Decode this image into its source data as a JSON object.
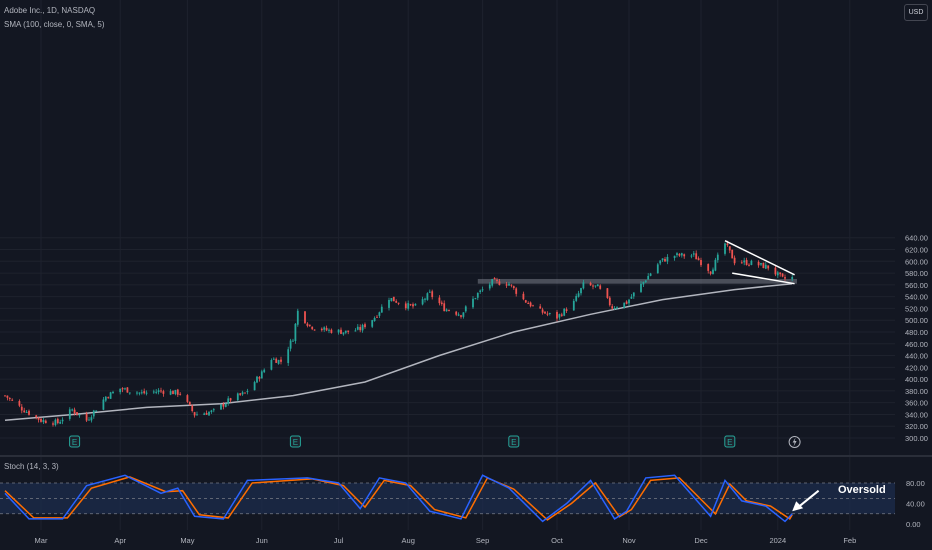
{
  "legend": {
    "title": "Adobe Inc., 1D, NASDAQ",
    "indicator": "SMA (100, close, 0, SMA, 5)",
    "stoch": "Stoch (14, 3, 3)"
  },
  "currency_button": "USD",
  "annotation": {
    "text": "Oversold",
    "color": "#ffffff"
  },
  "colors": {
    "background": "#131722",
    "up": "#26a69a",
    "down": "#ef5350",
    "sma": "#b2b5be",
    "stoch_k": "#2962ff",
    "stoch_d": "#ff6d00",
    "band": "#1c2c4c",
    "zone": "#787b86",
    "drawing": "#ffffff"
  },
  "chart_data": {
    "type": "candlestick",
    "symbol": "Adobe Inc.",
    "interval": "1D",
    "exchange": "NASDAQ",
    "currency": "USD",
    "price_axis": {
      "ticks": [
        300,
        320,
        340,
        360,
        380,
        400,
        420,
        440,
        460,
        480,
        500,
        520,
        540,
        560,
        580,
        600,
        620,
        640
      ],
      "range": [
        292,
        648
      ]
    },
    "x_axis": {
      "labels": [
        {
          "label": "Mar",
          "date": "2023-03-01"
        },
        {
          "label": "Apr",
          "date": "2023-04-03"
        },
        {
          "label": "May",
          "date": "2023-05-01"
        },
        {
          "label": "Jun",
          "date": "2023-06-01"
        },
        {
          "label": "Jul",
          "date": "2023-07-03"
        },
        {
          "label": "Aug",
          "date": "2023-08-01"
        },
        {
          "label": "Sep",
          "date": "2023-09-01"
        },
        {
          "label": "Oct",
          "date": "2023-10-02"
        },
        {
          "label": "Nov",
          "date": "2023-11-01"
        },
        {
          "label": "Dec",
          "date": "2023-12-01"
        },
        {
          "label": "2024",
          "date": "2024-01-02"
        },
        {
          "label": "Feb",
          "date": "2024-02-01"
        }
      ]
    },
    "price_path": [
      {
        "date": "2023-02-14",
        "close": 372
      },
      {
        "date": "2023-02-21",
        "close": 350
      },
      {
        "date": "2023-03-01",
        "close": 330
      },
      {
        "date": "2023-03-08",
        "close": 326
      },
      {
        "date": "2023-03-14",
        "close": 348
      },
      {
        "date": "2023-03-20",
        "close": 330
      },
      {
        "date": "2023-03-28",
        "close": 370
      },
      {
        "date": "2023-04-03",
        "close": 384
      },
      {
        "date": "2023-04-12",
        "close": 376
      },
      {
        "date": "2023-04-20",
        "close": 380
      },
      {
        "date": "2023-04-28",
        "close": 376
      },
      {
        "date": "2023-05-04",
        "close": 340
      },
      {
        "date": "2023-05-12",
        "close": 345
      },
      {
        "date": "2023-05-19",
        "close": 366
      },
      {
        "date": "2023-05-25",
        "close": 376
      },
      {
        "date": "2023-06-01",
        "close": 410
      },
      {
        "date": "2023-06-05",
        "close": 435
      },
      {
        "date": "2023-06-09",
        "close": 430
      },
      {
        "date": "2023-06-14",
        "close": 470
      },
      {
        "date": "2023-06-16",
        "close": 515
      },
      {
        "date": "2023-06-21",
        "close": 490
      },
      {
        "date": "2023-06-28",
        "close": 483
      },
      {
        "date": "2023-07-06",
        "close": 480
      },
      {
        "date": "2023-07-12",
        "close": 485
      },
      {
        "date": "2023-07-18",
        "close": 505
      },
      {
        "date": "2023-07-24",
        "close": 538
      },
      {
        "date": "2023-07-31",
        "close": 525
      },
      {
        "date": "2023-08-04",
        "close": 523
      },
      {
        "date": "2023-08-10",
        "close": 545
      },
      {
        "date": "2023-08-16",
        "close": 520
      },
      {
        "date": "2023-08-23",
        "close": 510
      },
      {
        "date": "2023-08-30",
        "close": 545
      },
      {
        "date": "2023-09-05",
        "close": 565
      },
      {
        "date": "2023-09-12",
        "close": 562
      },
      {
        "date": "2023-09-18",
        "close": 535
      },
      {
        "date": "2023-09-25",
        "close": 515
      },
      {
        "date": "2023-10-02",
        "close": 505
      },
      {
        "date": "2023-10-09",
        "close": 530
      },
      {
        "date": "2023-10-13",
        "close": 560
      },
      {
        "date": "2023-10-19",
        "close": 556
      },
      {
        "date": "2023-10-25",
        "close": 522
      },
      {
        "date": "2023-10-31",
        "close": 530
      },
      {
        "date": "2023-11-06",
        "close": 560
      },
      {
        "date": "2023-11-14",
        "close": 600
      },
      {
        "date": "2023-11-20",
        "close": 610
      },
      {
        "date": "2023-11-28",
        "close": 610
      },
      {
        "date": "2023-12-05",
        "close": 583
      },
      {
        "date": "2023-12-11",
        "close": 630
      },
      {
        "date": "2023-12-15",
        "close": 600
      },
      {
        "date": "2023-12-22",
        "close": 597
      },
      {
        "date": "2023-12-29",
        "close": 590
      },
      {
        "date": "2024-01-04",
        "close": 570
      },
      {
        "date": "2024-01-08",
        "close": 572
      }
    ],
    "sma100": [
      {
        "date": "2023-02-14",
        "value": 330
      },
      {
        "date": "2023-03-15",
        "value": 340
      },
      {
        "date": "2023-04-14",
        "value": 352
      },
      {
        "date": "2023-05-15",
        "value": 358
      },
      {
        "date": "2023-06-14",
        "value": 372
      },
      {
        "date": "2023-07-14",
        "value": 395
      },
      {
        "date": "2023-08-14",
        "value": 440
      },
      {
        "date": "2023-09-14",
        "value": 480
      },
      {
        "date": "2023-10-16",
        "value": 510
      },
      {
        "date": "2023-11-15",
        "value": 535
      },
      {
        "date": "2023-12-15",
        "value": 552
      },
      {
        "date": "2024-01-08",
        "value": 562
      }
    ],
    "stochastic": {
      "params": "14, 3, 3",
      "axis_ticks": [
        0,
        40,
        80
      ],
      "levels": [
        20,
        80
      ],
      "k": [
        {
          "date": "2023-02-14",
          "value": 60
        },
        {
          "date": "2023-02-24",
          "value": 10
        },
        {
          "date": "2023-03-10",
          "value": 10
        },
        {
          "date": "2023-03-20",
          "value": 75
        },
        {
          "date": "2023-04-05",
          "value": 95
        },
        {
          "date": "2023-04-20",
          "value": 60
        },
        {
          "date": "2023-04-27",
          "value": 70
        },
        {
          "date": "2023-05-04",
          "value": 15
        },
        {
          "date": "2023-05-16",
          "value": 10
        },
        {
          "date": "2023-05-26",
          "value": 85
        },
        {
          "date": "2023-06-20",
          "value": 90
        },
        {
          "date": "2023-07-03",
          "value": 80
        },
        {
          "date": "2023-07-12",
          "value": 30
        },
        {
          "date": "2023-07-20",
          "value": 90
        },
        {
          "date": "2023-07-31",
          "value": 80
        },
        {
          "date": "2023-08-10",
          "value": 25
        },
        {
          "date": "2023-08-23",
          "value": 10
        },
        {
          "date": "2023-09-01",
          "value": 95
        },
        {
          "date": "2023-09-12",
          "value": 70
        },
        {
          "date": "2023-09-26",
          "value": 5
        },
        {
          "date": "2023-10-06",
          "value": 40
        },
        {
          "date": "2023-10-16",
          "value": 85
        },
        {
          "date": "2023-10-26",
          "value": 10
        },
        {
          "date": "2023-10-31",
          "value": 25
        },
        {
          "date": "2023-11-08",
          "value": 90
        },
        {
          "date": "2023-11-20",
          "value": 95
        },
        {
          "date": "2023-12-05",
          "value": 15
        },
        {
          "date": "2023-12-11",
          "value": 85
        },
        {
          "date": "2023-12-18",
          "value": 45
        },
        {
          "date": "2023-12-28",
          "value": 35
        },
        {
          "date": "2024-01-05",
          "value": 5
        },
        {
          "date": "2024-01-08",
          "value": 20
        }
      ],
      "d": [
        {
          "date": "2023-02-14",
          "value": 65
        },
        {
          "date": "2023-02-26",
          "value": 12
        },
        {
          "date": "2023-03-12",
          "value": 12
        },
        {
          "date": "2023-03-22",
          "value": 70
        },
        {
          "date": "2023-04-07",
          "value": 92
        },
        {
          "date": "2023-04-22",
          "value": 63
        },
        {
          "date": "2023-04-29",
          "value": 65
        },
        {
          "date": "2023-05-06",
          "value": 18
        },
        {
          "date": "2023-05-18",
          "value": 12
        },
        {
          "date": "2023-05-28",
          "value": 80
        },
        {
          "date": "2023-06-22",
          "value": 88
        },
        {
          "date": "2023-07-05",
          "value": 75
        },
        {
          "date": "2023-07-14",
          "value": 33
        },
        {
          "date": "2023-07-22",
          "value": 85
        },
        {
          "date": "2023-08-02",
          "value": 75
        },
        {
          "date": "2023-08-12",
          "value": 28
        },
        {
          "date": "2023-08-25",
          "value": 12
        },
        {
          "date": "2023-09-03",
          "value": 90
        },
        {
          "date": "2023-09-14",
          "value": 68
        },
        {
          "date": "2023-09-28",
          "value": 8
        },
        {
          "date": "2023-10-08",
          "value": 40
        },
        {
          "date": "2023-10-18",
          "value": 80
        },
        {
          "date": "2023-10-28",
          "value": 14
        },
        {
          "date": "2023-11-02",
          "value": 28
        },
        {
          "date": "2023-11-10",
          "value": 85
        },
        {
          "date": "2023-11-22",
          "value": 90
        },
        {
          "date": "2023-12-07",
          "value": 20
        },
        {
          "date": "2023-12-13",
          "value": 78
        },
        {
          "date": "2023-12-20",
          "value": 45
        },
        {
          "date": "2023-12-30",
          "value": 35
        },
        {
          "date": "2024-01-07",
          "value": 10
        },
        {
          "date": "2024-01-08",
          "value": 18
        }
      ]
    },
    "drawings": {
      "resistance_zone": {
        "from": "2023-08-30",
        "to": "2024-01-10",
        "low": 562,
        "high": 570
      },
      "wedge_upper": [
        {
          "date": "2023-12-11",
          "price": 635
        },
        {
          "date": "2024-01-09",
          "price": 577
        }
      ],
      "wedge_lower": [
        {
          "date": "2023-12-14",
          "price": 580
        },
        {
          "date": "2024-01-09",
          "price": 562
        }
      ],
      "annotation_arrow": {
        "from": {
          "date": "2024-01-19",
          "value": 65
        },
        "to": {
          "date": "2024-01-08",
          "value": 25
        }
      }
    },
    "earnings_markers": [
      {
        "date": "2023-03-15",
        "label": "E"
      },
      {
        "date": "2023-06-15",
        "label": "E"
      },
      {
        "date": "2023-09-14",
        "label": "E"
      },
      {
        "date": "2023-12-13",
        "label": "E"
      }
    ],
    "event_markers": [
      {
        "date": "2024-01-09",
        "icon": "lightning-icon"
      }
    ],
    "grid": true,
    "legend": "top-left"
  }
}
